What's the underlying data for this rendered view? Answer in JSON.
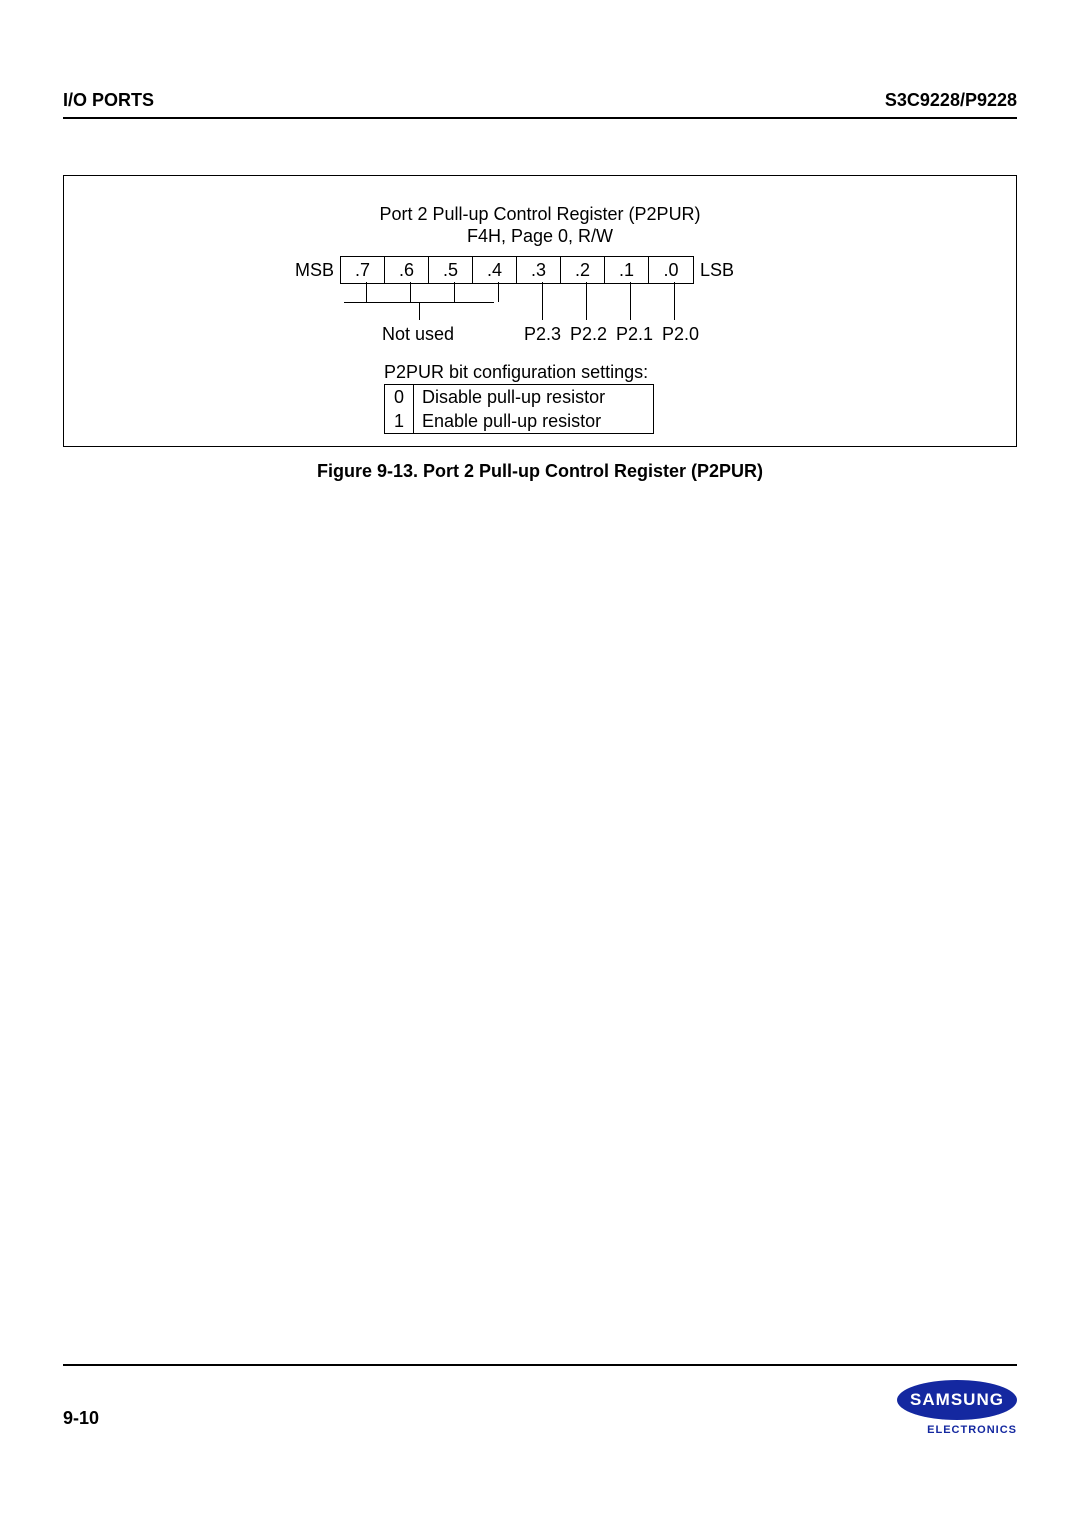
{
  "header": {
    "left": "I/O PORTS",
    "right": "S3C9228/P9228"
  },
  "figure": {
    "title": "Port 2 Pull-up Control Register (P2PUR)",
    "subtitle": "F4H, Page 0, R/W",
    "msb": "MSB",
    "lsb": "LSB",
    "bits": [
      ".7",
      ".6",
      ".5",
      ".4",
      ".3",
      ".2",
      ".1",
      ".0"
    ],
    "not_used": "Not used",
    "pin_labels": [
      "P2.3",
      "P2.2",
      "P2.1",
      "P2.0"
    ],
    "config_title": "P2PUR bit configuration settings:",
    "config_rows": [
      {
        "val": "0",
        "desc": "Disable pull-up resistor"
      },
      {
        "val": "1",
        "desc": "Enable pull-up resistor"
      }
    ],
    "caption": "Figure 9-13. Port 2 Pull-up Control Register (P2PUR)"
  },
  "footer": {
    "page": "9-10",
    "logo_text": "SAMSUNG",
    "logo_sub": "ELECTRONICS"
  },
  "colors": {
    "text": "#000000",
    "background": "#ffffff",
    "logo_bg": "#1428a0",
    "logo_text": "#ffffff"
  }
}
